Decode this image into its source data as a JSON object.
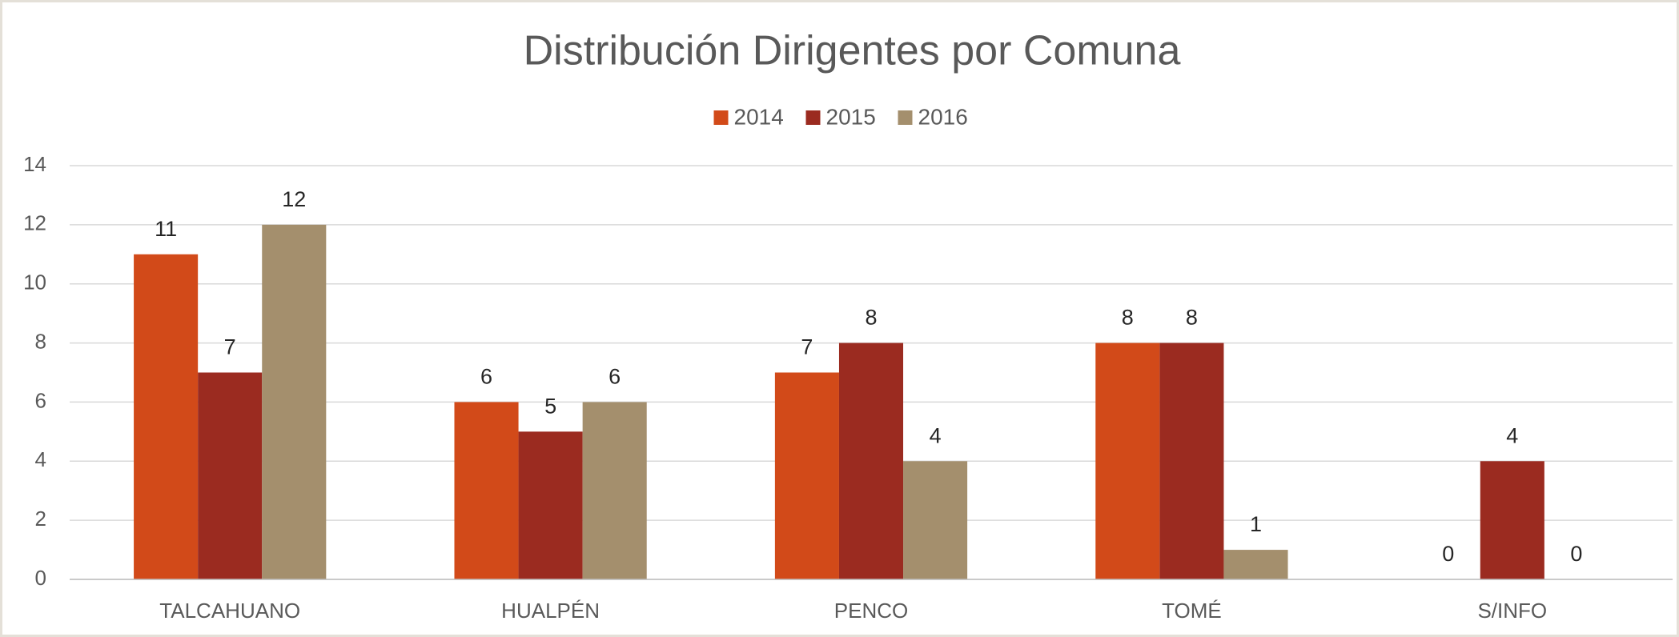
{
  "chart_data": {
    "type": "bar",
    "title": "Distribución Dirigentes por Comuna",
    "categories": [
      "TALCAHUANO",
      "HUALPÉN",
      "PENCO",
      "TOMÉ",
      "S/INFO"
    ],
    "series": [
      {
        "name": "2014",
        "color": "#d24a19",
        "values": [
          11,
          6,
          7,
          8,
          0
        ]
      },
      {
        "name": "2015",
        "color": "#9b2b20",
        "values": [
          7,
          5,
          8,
          8,
          4
        ]
      },
      {
        "name": "2016",
        "color": "#a48f6d",
        "values": [
          12,
          6,
          4,
          1,
          0
        ]
      }
    ],
    "ylim": [
      0,
      14
    ],
    "yticks": [
      0,
      2,
      4,
      6,
      8,
      10,
      12,
      14
    ],
    "grid": true,
    "legend": "top"
  }
}
